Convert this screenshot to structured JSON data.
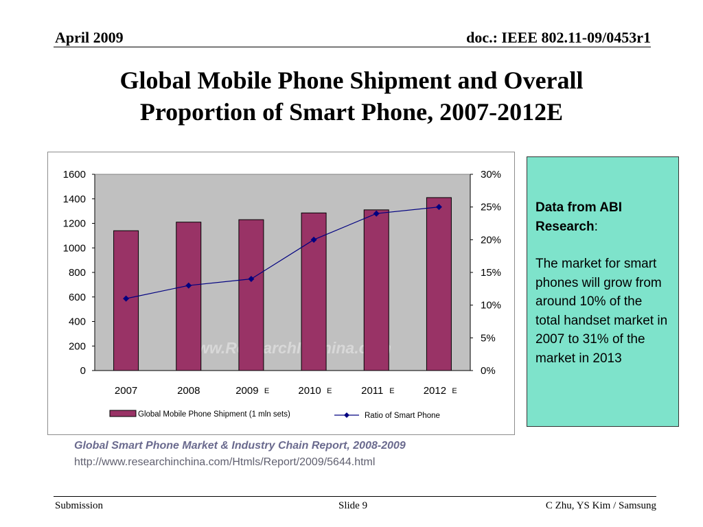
{
  "header": {
    "date": "April 2009",
    "doc": "doc.: IEEE 802.11-09/0453r1"
  },
  "slide": {
    "title_line1": "Global Mobile Phone Shipment and Overall",
    "title_line2": "Proportion of Smart Phone, 2007-2012E"
  },
  "chart_data": {
    "type": "bar",
    "title": "",
    "categories": [
      "2007",
      "2008",
      "2009",
      "2010",
      "2011",
      "2012"
    ],
    "category_suffix": [
      "",
      "",
      "E",
      "E",
      "E",
      "E"
    ],
    "series": [
      {
        "name": "Global Mobile Phone Shipment (1 mln sets)",
        "type": "bar",
        "axis": "left",
        "values": [
          1140,
          1210,
          1230,
          1285,
          1310,
          1410
        ],
        "color": "#993366"
      },
      {
        "name": "Ratio of Smart Phone",
        "type": "line",
        "axis": "right",
        "values": [
          11,
          13,
          14,
          20,
          24,
          25
        ],
        "color": "#000080"
      }
    ],
    "y_left": {
      "min": 0,
      "max": 1600,
      "ticks": [
        "0",
        "200",
        "400",
        "600",
        "800",
        "1000",
        "1200",
        "1400",
        "1600"
      ]
    },
    "y_right": {
      "min": 0,
      "max": 30,
      "ticks": [
        "0%",
        "5%",
        "10%",
        "15%",
        "20%",
        "25%",
        "30%"
      ]
    },
    "grid": false,
    "legend": "bottom",
    "watermark": "www.ResearchInChina.com",
    "plot_bg": "#c0c0c0"
  },
  "note": {
    "heading": "Data from ABI Research",
    "heading_colon": ":",
    "body": "The market for smart phones will grow from around 10% of the total handset market in 2007 to 31% of the market in 2013",
    "bg": "#7ee3cb"
  },
  "source": {
    "title": "Global Smart Phone Market & Industry Chain Report, 2008-2009",
    "url": "http://www.researchinchina.com/Htmls/Report/2009/5644.html"
  },
  "footer": {
    "left": "Submission",
    "center": "Slide 9",
    "right": "C Zhu, YS Kim / Samsung"
  }
}
